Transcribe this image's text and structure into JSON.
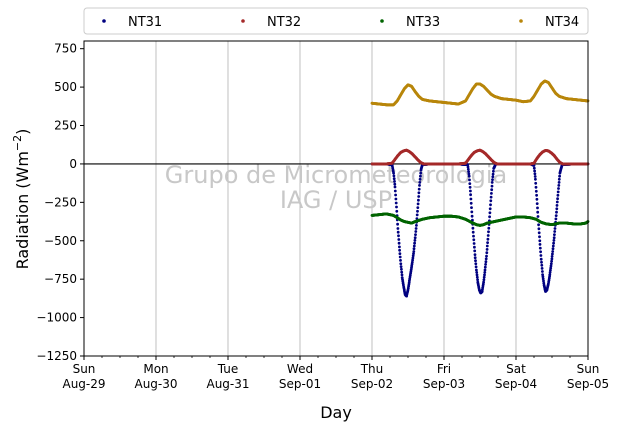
{
  "chart_data": {
    "type": "scatter",
    "title": "",
    "xlabel": "Day",
    "ylabel": "Radiation (Wm",
    "ylabel_sup": "−2",
    "ylabel_close": ")",
    "ylim": [
      -1250,
      800
    ],
    "yticks": [
      -1250,
      -1000,
      -750,
      -500,
      -250,
      0,
      250,
      500,
      750
    ],
    "ytick_labels": [
      "−1250",
      "−1000",
      "−750",
      "−500",
      "−250",
      "0",
      "250",
      "500",
      "750"
    ],
    "xlim_days": [
      0,
      7
    ],
    "xticks": [
      {
        "day": 0,
        "line1": "Sun",
        "line2": "Aug-29"
      },
      {
        "day": 1,
        "line1": "Mon",
        "line2": "Aug-30"
      },
      {
        "day": 2,
        "line1": "Tue",
        "line2": "Aug-31"
      },
      {
        "day": 3,
        "line1": "Wed",
        "line2": "Sep-01"
      },
      {
        "day": 4,
        "line1": "Thu",
        "line2": "Sep-02"
      },
      {
        "day": 5,
        "line1": "Fri",
        "line2": "Sep-03"
      },
      {
        "day": 6,
        "line1": "Sat",
        "line2": "Sep-04"
      },
      {
        "day": 7,
        "line1": "Sun",
        "line2": "Sep-05"
      }
    ],
    "grid": "vertical",
    "legend_position": "top",
    "watermark": [
      "Grupo de Micrometeorologia",
      "IAG / USP"
    ],
    "series": [
      {
        "name": "NT31",
        "color": "#000080",
        "points": [
          [
            4.0,
            0
          ],
          [
            4.2,
            0
          ],
          [
            4.28,
            -5
          ],
          [
            4.3,
            -60
          ],
          [
            4.32,
            -150
          ],
          [
            4.34,
            -280
          ],
          [
            4.36,
            -420
          ],
          [
            4.38,
            -540
          ],
          [
            4.4,
            -650
          ],
          [
            4.42,
            -740
          ],
          [
            4.44,
            -800
          ],
          [
            4.46,
            -850
          ],
          [
            4.48,
            -860
          ],
          [
            4.5,
            -820
          ],
          [
            4.52,
            -760
          ],
          [
            4.54,
            -700
          ],
          [
            4.56,
            -640
          ],
          [
            4.58,
            -570
          ],
          [
            4.6,
            -480
          ],
          [
            4.62,
            -380
          ],
          [
            4.64,
            -260
          ],
          [
            4.66,
            -140
          ],
          [
            4.68,
            -40
          ],
          [
            4.7,
            -5
          ],
          [
            4.8,
            0
          ],
          [
            5.0,
            0
          ],
          [
            5.2,
            0
          ],
          [
            5.33,
            -5
          ],
          [
            5.35,
            -80
          ],
          [
            5.37,
            -200
          ],
          [
            5.39,
            -340
          ],
          [
            5.41,
            -470
          ],
          [
            5.43,
            -590
          ],
          [
            5.45,
            -690
          ],
          [
            5.47,
            -770
          ],
          [
            5.49,
            -820
          ],
          [
            5.51,
            -840
          ],
          [
            5.53,
            -830
          ],
          [
            5.55,
            -770
          ],
          [
            5.57,
            -690
          ],
          [
            5.59,
            -600
          ],
          [
            5.61,
            -490
          ],
          [
            5.63,
            -370
          ],
          [
            5.65,
            -240
          ],
          [
            5.67,
            -120
          ],
          [
            5.69,
            -30
          ],
          [
            5.72,
            0
          ],
          [
            5.9,
            0
          ],
          [
            6.1,
            0
          ],
          [
            6.2,
            0
          ],
          [
            6.25,
            -10
          ],
          [
            6.27,
            -100
          ],
          [
            6.29,
            -230
          ],
          [
            6.31,
            -370
          ],
          [
            6.33,
            -500
          ],
          [
            6.35,
            -620
          ],
          [
            6.37,
            -720
          ],
          [
            6.39,
            -790
          ],
          [
            6.41,
            -830
          ],
          [
            6.43,
            -820
          ],
          [
            6.45,
            -780
          ],
          [
            6.47,
            -720
          ],
          [
            6.49,
            -650
          ],
          [
            6.51,
            -570
          ],
          [
            6.53,
            -480
          ],
          [
            6.55,
            -380
          ],
          [
            6.57,
            -270
          ],
          [
            6.59,
            -160
          ],
          [
            6.61,
            -60
          ],
          [
            6.64,
            -5
          ],
          [
            6.8,
            0
          ],
          [
            7.0,
            0
          ]
        ]
      },
      {
        "name": "NT32",
        "color": "#a52a2a",
        "points": [
          [
            4.0,
            0
          ],
          [
            4.2,
            0
          ],
          [
            4.28,
            5
          ],
          [
            4.32,
            30
          ],
          [
            4.36,
            55
          ],
          [
            4.4,
            75
          ],
          [
            4.44,
            85
          ],
          [
            4.48,
            90
          ],
          [
            4.52,
            80
          ],
          [
            4.56,
            65
          ],
          [
            4.6,
            45
          ],
          [
            4.64,
            25
          ],
          [
            4.68,
            8
          ],
          [
            4.72,
            0
          ],
          [
            5.0,
            0
          ],
          [
            5.2,
            0
          ],
          [
            5.3,
            5
          ],
          [
            5.34,
            30
          ],
          [
            5.38,
            55
          ],
          [
            5.42,
            75
          ],
          [
            5.46,
            85
          ],
          [
            5.5,
            90
          ],
          [
            5.54,
            80
          ],
          [
            5.58,
            65
          ],
          [
            5.62,
            45
          ],
          [
            5.66,
            25
          ],
          [
            5.7,
            8
          ],
          [
            5.74,
            0
          ],
          [
            6.0,
            0
          ],
          [
            6.2,
            0
          ],
          [
            6.25,
            5
          ],
          [
            6.29,
            35
          ],
          [
            6.33,
            60
          ],
          [
            6.37,
            78
          ],
          [
            6.41,
            88
          ],
          [
            6.45,
            85
          ],
          [
            6.49,
            72
          ],
          [
            6.53,
            55
          ],
          [
            6.57,
            30
          ],
          [
            6.61,
            10
          ],
          [
            6.65,
            0
          ],
          [
            7.0,
            0
          ]
        ]
      },
      {
        "name": "NT33",
        "color": "#006400",
        "points": [
          [
            4.0,
            -335
          ],
          [
            4.1,
            -330
          ],
          [
            4.2,
            -325
          ],
          [
            4.3,
            -335
          ],
          [
            4.35,
            -350
          ],
          [
            4.4,
            -365
          ],
          [
            4.45,
            -375
          ],
          [
            4.5,
            -380
          ],
          [
            4.55,
            -385
          ],
          [
            4.6,
            -375
          ],
          [
            4.7,
            -360
          ],
          [
            4.8,
            -350
          ],
          [
            4.9,
            -345
          ],
          [
            5.0,
            -340
          ],
          [
            5.1,
            -340
          ],
          [
            5.2,
            -345
          ],
          [
            5.3,
            -360
          ],
          [
            5.38,
            -380
          ],
          [
            5.45,
            -395
          ],
          [
            5.5,
            -400
          ],
          [
            5.55,
            -395
          ],
          [
            5.6,
            -385
          ],
          [
            5.7,
            -375
          ],
          [
            5.8,
            -365
          ],
          [
            5.9,
            -355
          ],
          [
            6.0,
            -345
          ],
          [
            6.1,
            -345
          ],
          [
            6.2,
            -350
          ],
          [
            6.28,
            -360
          ],
          [
            6.35,
            -380
          ],
          [
            6.42,
            -390
          ],
          [
            6.5,
            -395
          ],
          [
            6.6,
            -385
          ],
          [
            6.7,
            -385
          ],
          [
            6.8,
            -390
          ],
          [
            6.9,
            -390
          ],
          [
            6.97,
            -385
          ],
          [
            7.0,
            -375
          ]
        ]
      },
      {
        "name": "NT34",
        "color": "#b8860b",
        "points": [
          [
            4.0,
            395
          ],
          [
            4.1,
            390
          ],
          [
            4.2,
            385
          ],
          [
            4.3,
            385
          ],
          [
            4.35,
            410
          ],
          [
            4.4,
            450
          ],
          [
            4.45,
            490
          ],
          [
            4.5,
            515
          ],
          [
            4.55,
            505
          ],
          [
            4.6,
            470
          ],
          [
            4.65,
            440
          ],
          [
            4.7,
            420
          ],
          [
            4.8,
            410
          ],
          [
            4.9,
            405
          ],
          [
            5.0,
            400
          ],
          [
            5.1,
            395
          ],
          [
            5.2,
            390
          ],
          [
            5.3,
            410
          ],
          [
            5.35,
            450
          ],
          [
            5.4,
            490
          ],
          [
            5.45,
            520
          ],
          [
            5.5,
            520
          ],
          [
            5.55,
            505
          ],
          [
            5.6,
            480
          ],
          [
            5.65,
            455
          ],
          [
            5.7,
            440
          ],
          [
            5.8,
            425
          ],
          [
            5.9,
            420
          ],
          [
            6.0,
            415
          ],
          [
            6.1,
            405
          ],
          [
            6.2,
            410
          ],
          [
            6.25,
            440
          ],
          [
            6.3,
            480
          ],
          [
            6.35,
            520
          ],
          [
            6.4,
            540
          ],
          [
            6.45,
            530
          ],
          [
            6.5,
            495
          ],
          [
            6.55,
            460
          ],
          [
            6.6,
            440
          ],
          [
            6.7,
            425
          ],
          [
            6.8,
            420
          ],
          [
            6.9,
            415
          ],
          [
            7.0,
            410
          ]
        ]
      }
    ]
  }
}
